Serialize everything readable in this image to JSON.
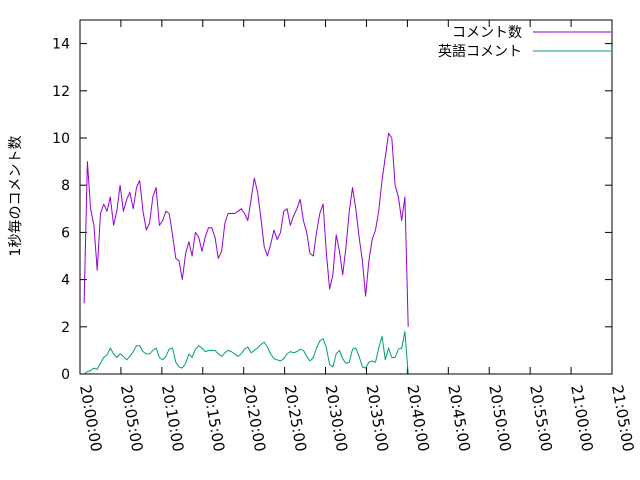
{
  "chart_data": {
    "type": "line",
    "title": "",
    "ylabel": "1秒毎のコメント数",
    "xlabel": "",
    "ylim": [
      0,
      15
    ],
    "yticks": [
      0,
      2,
      4,
      6,
      8,
      10,
      12,
      14
    ],
    "xlim_minutes": [
      0,
      65
    ],
    "xticks": [
      {
        "label": "20:00:00",
        "minute": 0
      },
      {
        "label": "20:05:00",
        "minute": 5
      },
      {
        "label": "20:10:00",
        "minute": 10
      },
      {
        "label": "20:15:00",
        "minute": 15
      },
      {
        "label": "20:20:00",
        "minute": 20
      },
      {
        "label": "20:25:00",
        "minute": 25
      },
      {
        "label": "20:30:00",
        "minute": 30
      },
      {
        "label": "20:35:00",
        "minute": 35
      },
      {
        "label": "20:40:00",
        "minute": 40
      },
      {
        "label": "20:45:00",
        "minute": 45
      },
      {
        "label": "20:50:00",
        "minute": 50
      },
      {
        "label": "20:55:00",
        "minute": 55
      },
      {
        "label": "21:00:00",
        "minute": 60
      },
      {
        "label": "21:05:00",
        "minute": 65
      }
    ],
    "legend_position": "top-right",
    "grid": false,
    "series": [
      {
        "name": "コメント数",
        "color": "#9400d3",
        "points": [
          [
            0.5,
            3.0
          ],
          [
            0.9,
            9.0
          ],
          [
            1.3,
            7.0
          ],
          [
            1.7,
            6.3
          ],
          [
            2.1,
            4.4
          ],
          [
            2.5,
            6.8
          ],
          [
            2.9,
            7.2
          ],
          [
            3.3,
            6.9
          ],
          [
            3.7,
            7.5
          ],
          [
            4.1,
            6.3
          ],
          [
            4.5,
            6.9
          ],
          [
            4.9,
            8.0
          ],
          [
            5.3,
            6.9
          ],
          [
            5.7,
            7.4
          ],
          [
            6.1,
            7.7
          ],
          [
            6.5,
            7.0
          ],
          [
            6.9,
            7.9
          ],
          [
            7.3,
            8.2
          ],
          [
            7.7,
            6.9
          ],
          [
            8.1,
            6.1
          ],
          [
            8.5,
            6.4
          ],
          [
            8.9,
            7.5
          ],
          [
            9.3,
            7.9
          ],
          [
            9.7,
            6.3
          ],
          [
            10.1,
            6.5
          ],
          [
            10.5,
            6.9
          ],
          [
            10.9,
            6.8
          ],
          [
            11.3,
            5.9
          ],
          [
            11.7,
            4.9
          ],
          [
            12.1,
            4.8
          ],
          [
            12.5,
            4.0
          ],
          [
            12.9,
            5.1
          ],
          [
            13.3,
            5.6
          ],
          [
            13.7,
            5.0
          ],
          [
            14.1,
            6.0
          ],
          [
            14.5,
            5.8
          ],
          [
            14.9,
            5.2
          ],
          [
            15.3,
            5.8
          ],
          [
            15.7,
            6.2
          ],
          [
            16.1,
            6.2
          ],
          [
            16.5,
            5.8
          ],
          [
            16.9,
            4.9
          ],
          [
            17.3,
            5.2
          ],
          [
            17.7,
            6.4
          ],
          [
            18.1,
            6.8
          ],
          [
            18.5,
            6.8
          ],
          [
            18.9,
            6.8
          ],
          [
            19.3,
            6.9
          ],
          [
            19.7,
            7.0
          ],
          [
            20.1,
            6.8
          ],
          [
            20.5,
            6.5
          ],
          [
            20.9,
            7.4
          ],
          [
            21.3,
            8.3
          ],
          [
            21.7,
            7.7
          ],
          [
            22.1,
            6.6
          ],
          [
            22.5,
            5.4
          ],
          [
            22.9,
            5.0
          ],
          [
            23.3,
            5.5
          ],
          [
            23.7,
            6.1
          ],
          [
            24.1,
            5.7
          ],
          [
            24.5,
            6.0
          ],
          [
            24.9,
            6.9
          ],
          [
            25.3,
            7.0
          ],
          [
            25.7,
            6.3
          ],
          [
            26.1,
            6.7
          ],
          [
            26.5,
            7.0
          ],
          [
            26.9,
            7.4
          ],
          [
            27.3,
            6.5
          ],
          [
            27.7,
            6.0
          ],
          [
            28.1,
            5.1
          ],
          [
            28.5,
            5.0
          ],
          [
            28.9,
            6.0
          ],
          [
            29.3,
            6.8
          ],
          [
            29.7,
            7.2
          ],
          [
            30.1,
            5.1
          ],
          [
            30.5,
            3.6
          ],
          [
            30.9,
            4.2
          ],
          [
            31.3,
            5.9
          ],
          [
            31.7,
            5.2
          ],
          [
            32.1,
            4.2
          ],
          [
            32.5,
            5.4
          ],
          [
            32.9,
            6.9
          ],
          [
            33.3,
            7.9
          ],
          [
            33.7,
            7.0
          ],
          [
            34.1,
            5.8
          ],
          [
            34.5,
            4.8
          ],
          [
            34.9,
            3.3
          ],
          [
            35.3,
            4.8
          ],
          [
            35.7,
            5.7
          ],
          [
            36.1,
            6.1
          ],
          [
            36.5,
            6.9
          ],
          [
            36.9,
            8.2
          ],
          [
            37.3,
            9.2
          ],
          [
            37.7,
            10.2
          ],
          [
            38.1,
            10.0
          ],
          [
            38.5,
            8.0
          ],
          [
            38.9,
            7.5
          ],
          [
            39.3,
            6.5
          ],
          [
            39.7,
            7.5
          ],
          [
            40.1,
            2.0
          ]
        ]
      },
      {
        "name": "英語コメント",
        "color": "#009e73",
        "points": [
          [
            0.5,
            0.0
          ],
          [
            0.9,
            0.1
          ],
          [
            1.3,
            0.15
          ],
          [
            1.7,
            0.25
          ],
          [
            2.1,
            0.2
          ],
          [
            2.5,
            0.45
          ],
          [
            2.9,
            0.7
          ],
          [
            3.3,
            0.8
          ],
          [
            3.7,
            1.1
          ],
          [
            4.1,
            0.85
          ],
          [
            4.5,
            0.7
          ],
          [
            4.9,
            0.85
          ],
          [
            5.3,
            0.75
          ],
          [
            5.7,
            0.6
          ],
          [
            6.1,
            0.75
          ],
          [
            6.5,
            0.95
          ],
          [
            6.9,
            1.2
          ],
          [
            7.3,
            1.2
          ],
          [
            7.7,
            0.95
          ],
          [
            8.1,
            0.85
          ],
          [
            8.5,
            0.85
          ],
          [
            8.9,
            1.0
          ],
          [
            9.3,
            1.1
          ],
          [
            9.7,
            0.7
          ],
          [
            10.1,
            0.6
          ],
          [
            10.5,
            0.75
          ],
          [
            10.9,
            1.05
          ],
          [
            11.3,
            1.1
          ],
          [
            11.7,
            0.5
          ],
          [
            12.1,
            0.3
          ],
          [
            12.5,
            0.25
          ],
          [
            12.9,
            0.45
          ],
          [
            13.3,
            0.85
          ],
          [
            13.7,
            0.7
          ],
          [
            14.1,
            1.05
          ],
          [
            14.5,
            1.2
          ],
          [
            14.9,
            1.1
          ],
          [
            15.3,
            0.95
          ],
          [
            15.7,
            1.0
          ],
          [
            16.1,
            1.0
          ],
          [
            16.5,
            1.0
          ],
          [
            16.9,
            0.85
          ],
          [
            17.3,
            0.75
          ],
          [
            17.7,
            0.9
          ],
          [
            18.1,
            1.0
          ],
          [
            18.5,
            0.95
          ],
          [
            18.9,
            0.85
          ],
          [
            19.3,
            0.75
          ],
          [
            19.7,
            0.85
          ],
          [
            20.1,
            1.05
          ],
          [
            20.5,
            1.15
          ],
          [
            20.9,
            0.9
          ],
          [
            21.3,
            1.0
          ],
          [
            21.7,
            1.1
          ],
          [
            22.1,
            1.25
          ],
          [
            22.5,
            1.35
          ],
          [
            22.9,
            1.15
          ],
          [
            23.3,
            0.85
          ],
          [
            23.7,
            0.65
          ],
          [
            24.1,
            0.6
          ],
          [
            24.5,
            0.55
          ],
          [
            24.9,
            0.65
          ],
          [
            25.3,
            0.85
          ],
          [
            25.7,
            0.95
          ],
          [
            26.1,
            0.9
          ],
          [
            26.5,
            0.95
          ],
          [
            26.9,
            1.05
          ],
          [
            27.3,
            1.0
          ],
          [
            27.7,
            0.75
          ],
          [
            28.1,
            0.55
          ],
          [
            28.5,
            0.7
          ],
          [
            28.9,
            1.1
          ],
          [
            29.3,
            1.4
          ],
          [
            29.7,
            1.5
          ],
          [
            30.1,
            1.1
          ],
          [
            30.5,
            0.4
          ],
          [
            30.9,
            0.3
          ],
          [
            31.3,
            0.85
          ],
          [
            31.7,
            1.0
          ],
          [
            32.1,
            0.65
          ],
          [
            32.5,
            0.45
          ],
          [
            32.9,
            0.5
          ],
          [
            33.3,
            1.05
          ],
          [
            33.7,
            1.1
          ],
          [
            34.1,
            0.75
          ],
          [
            34.5,
            0.3
          ],
          [
            34.9,
            0.25
          ],
          [
            35.3,
            0.5
          ],
          [
            35.7,
            0.55
          ],
          [
            36.1,
            0.5
          ],
          [
            36.5,
            1.1
          ],
          [
            36.9,
            1.6
          ],
          [
            37.3,
            0.6
          ],
          [
            37.7,
            1.1
          ],
          [
            38.1,
            0.7
          ],
          [
            38.5,
            0.7
          ],
          [
            38.9,
            1.05
          ],
          [
            39.3,
            1.1
          ],
          [
            39.7,
            1.8
          ],
          [
            40.1,
            0.0
          ]
        ]
      }
    ]
  }
}
